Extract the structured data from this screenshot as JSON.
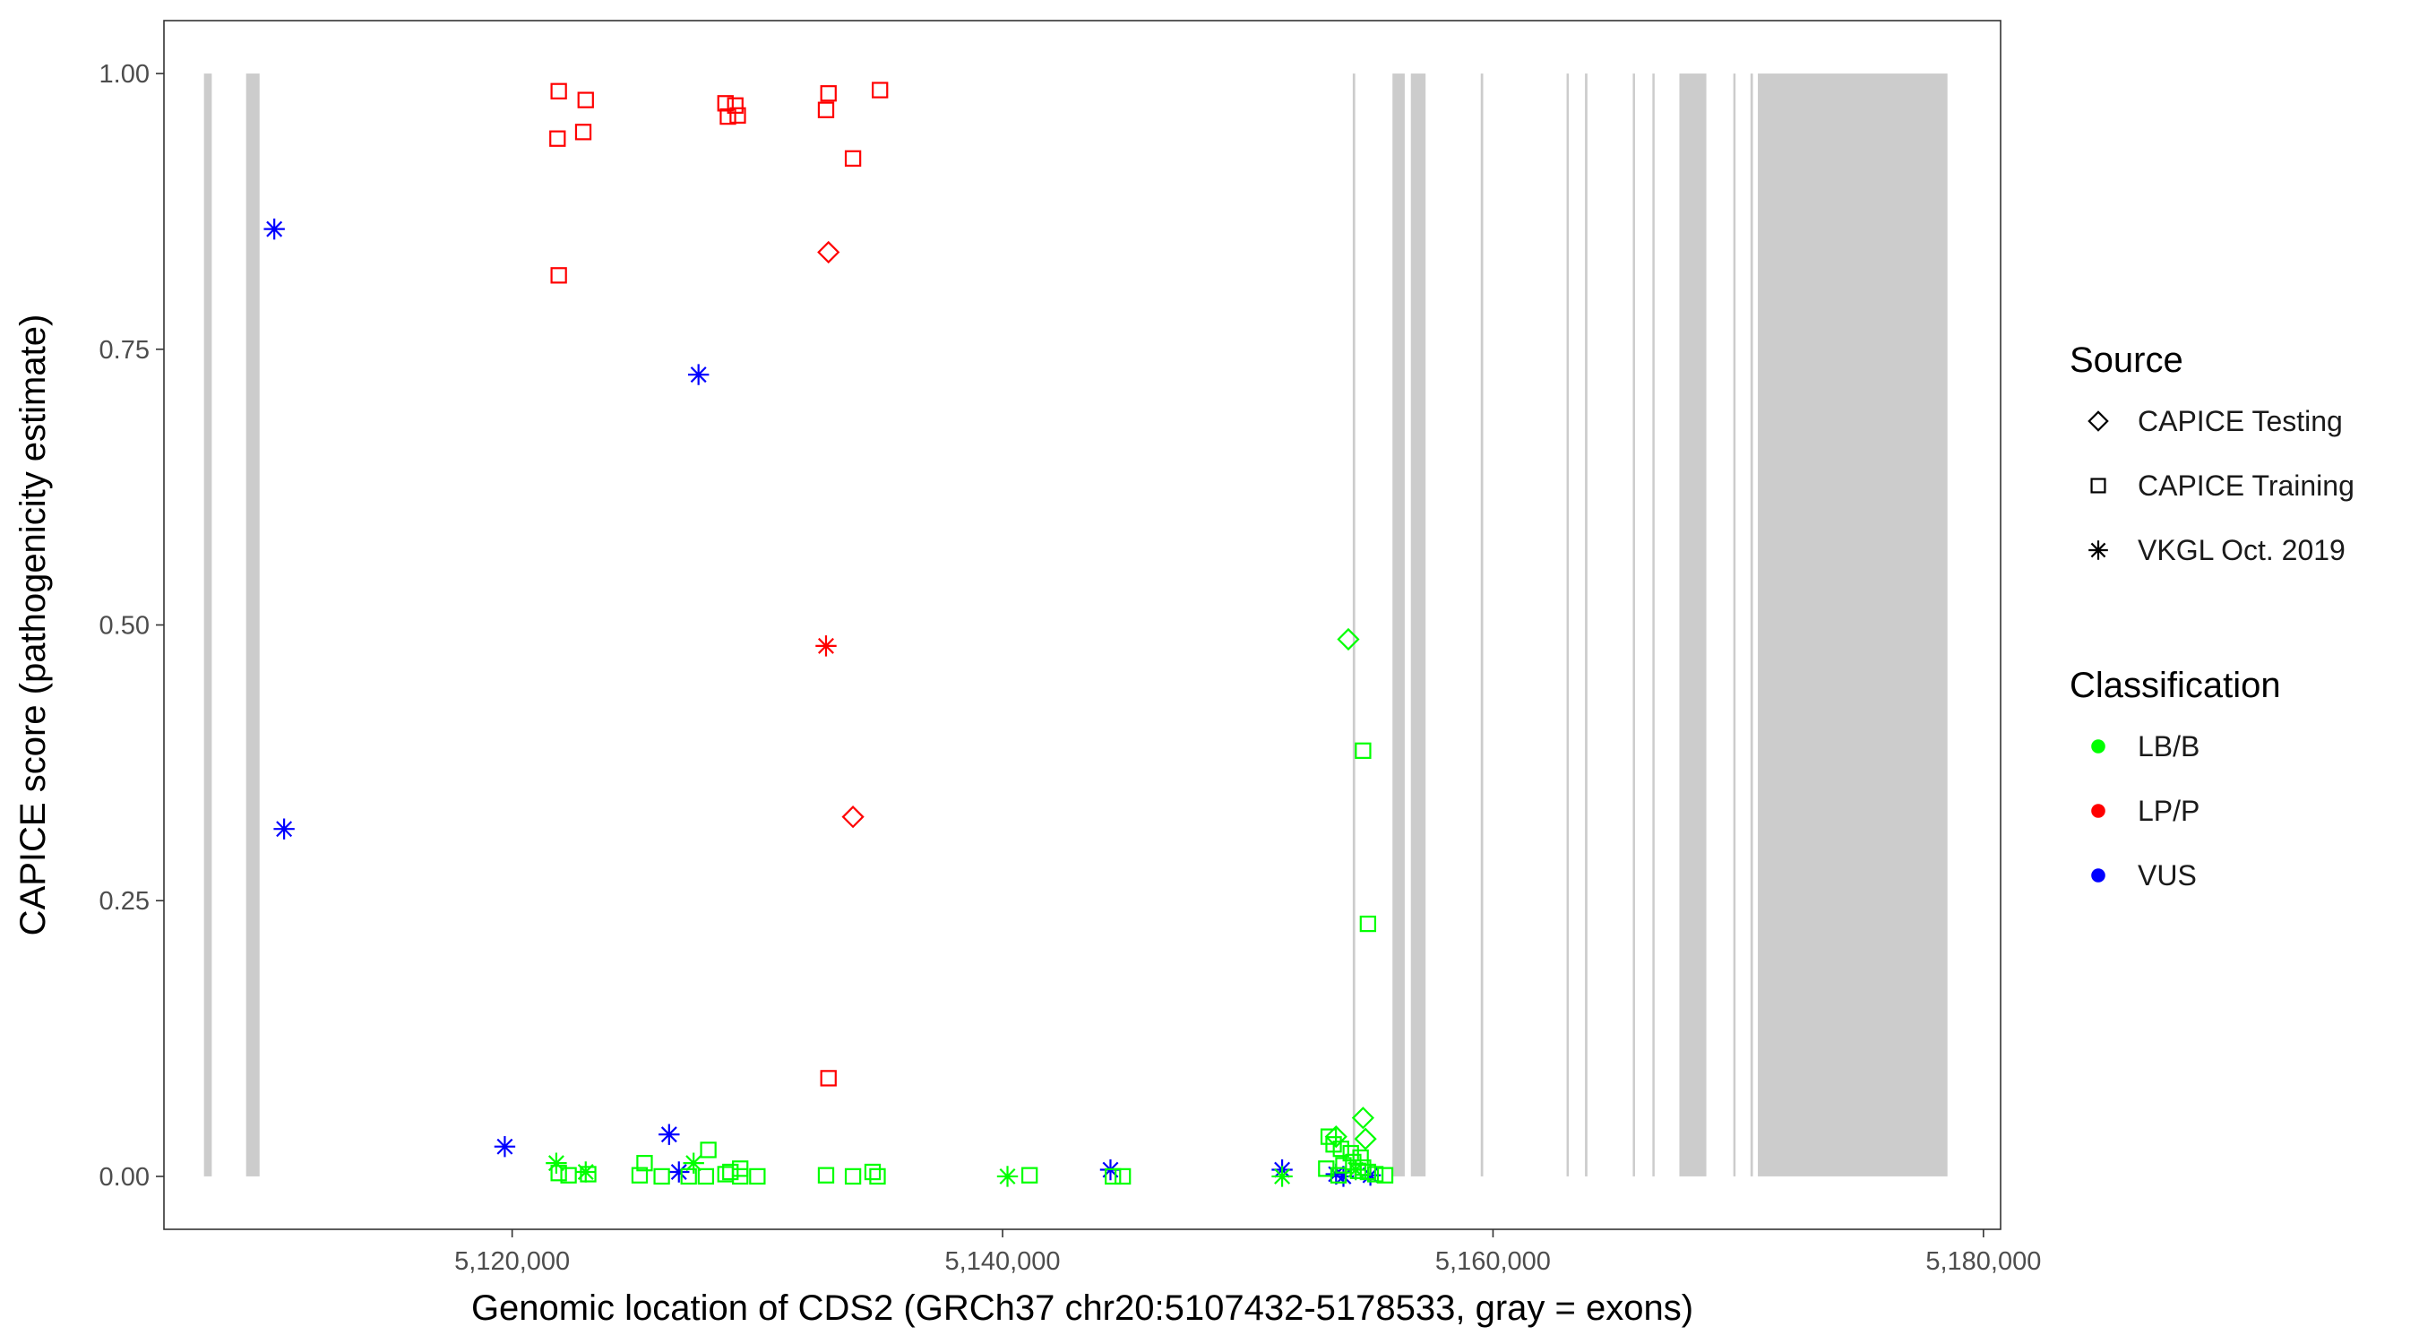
{
  "chart_data": {
    "type": "scatter",
    "title": "",
    "xlabel": "Genomic location of CDS2 (GRCh37 chr20:5107432-5178533, gray = exons)",
    "ylabel": "CAPICE score (pathogenicity estimate)",
    "xlim": [
      5105800,
      5180700
    ],
    "ylim": [
      -0.048,
      1.048
    ],
    "x_ticks": [
      5120000,
      5140000,
      5160000,
      5180000
    ],
    "x_tick_labels": [
      "5,120,000",
      "5,140,000",
      "5,160,000",
      "5,180,000"
    ],
    "y_ticks": [
      0,
      0.25,
      0.5,
      0.75,
      1.0
    ],
    "y_tick_labels": [
      "0.00",
      "0.25",
      "0.50",
      "0.75",
      "1.00"
    ],
    "grid": false,
    "exon_color": "#cccccc",
    "exons": [
      [
        5107432,
        5107750
      ],
      [
        5109150,
        5109700
      ],
      [
        5154280,
        5154380
      ],
      [
        5155900,
        5156400
      ],
      [
        5156650,
        5157250
      ],
      [
        5159500,
        5159600
      ],
      [
        5163000,
        5163080
      ],
      [
        5163750,
        5163850
      ],
      [
        5165700,
        5165780
      ],
      [
        5166500,
        5166580
      ],
      [
        5167600,
        5168700
      ],
      [
        5169800,
        5169880
      ],
      [
        5170500,
        5170600
      ],
      [
        5170800,
        5178533
      ]
    ],
    "legend_position": "right",
    "legend": {
      "source_title": "Source",
      "source_items": [
        {
          "label": "CAPICE Testing",
          "shape": "diamond"
        },
        {
          "label": "CAPICE Training",
          "shape": "square"
        },
        {
          "label": "VKGL Oct. 2019",
          "shape": "asterisk"
        }
      ],
      "class_title": "Classification",
      "class_items": [
        {
          "label": "LB/B",
          "color": "#00ff00"
        },
        {
          "label": "LP/P",
          "color": "#ff0000"
        },
        {
          "label": "VUS",
          "color": "#0000ff"
        }
      ]
    },
    "series": [
      {
        "name": "LP/P",
        "color": "#ff0000",
        "points": [
          {
            "x": 5121900,
            "y": 0.984,
            "shape": "square"
          },
          {
            "x": 5121850,
            "y": 0.941,
            "shape": "square"
          },
          {
            "x": 5123000,
            "y": 0.976,
            "shape": "square"
          },
          {
            "x": 5122900,
            "y": 0.947,
            "shape": "square"
          },
          {
            "x": 5128700,
            "y": 0.973,
            "shape": "square"
          },
          {
            "x": 5129100,
            "y": 0.971,
            "shape": "square"
          },
          {
            "x": 5128800,
            "y": 0.961,
            "shape": "square"
          },
          {
            "x": 5129200,
            "y": 0.962,
            "shape": "square"
          },
          {
            "x": 5132900,
            "y": 0.982,
            "shape": "square"
          },
          {
            "x": 5132800,
            "y": 0.967,
            "shape": "square"
          },
          {
            "x": 5135000,
            "y": 0.985,
            "shape": "square"
          },
          {
            "x": 5133900,
            "y": 0.923,
            "shape": "square"
          },
          {
            "x": 5121900,
            "y": 0.817,
            "shape": "square"
          },
          {
            "x": 5132900,
            "y": 0.089,
            "shape": "square"
          },
          {
            "x": 5132900,
            "y": 0.838,
            "shape": "diamond"
          },
          {
            "x": 5133900,
            "y": 0.326,
            "shape": "diamond"
          },
          {
            "x": 5132800,
            "y": 0.481,
            "shape": "asterisk"
          }
        ]
      },
      {
        "name": "VUS",
        "color": "#0000ff",
        "points": [
          {
            "x": 5110300,
            "y": 0.859,
            "shape": "asterisk"
          },
          {
            "x": 5110700,
            "y": 0.315,
            "shape": "asterisk"
          },
          {
            "x": 5127600,
            "y": 0.727,
            "shape": "asterisk"
          },
          {
            "x": 5119700,
            "y": 0.027,
            "shape": "asterisk"
          },
          {
            "x": 5126400,
            "y": 0.038,
            "shape": "asterisk"
          },
          {
            "x": 5126800,
            "y": 0.004,
            "shape": "asterisk"
          },
          {
            "x": 5144400,
            "y": 0.006,
            "shape": "asterisk"
          },
          {
            "x": 5151400,
            "y": 0.006,
            "shape": "asterisk"
          },
          {
            "x": 5153600,
            "y": 0.002,
            "shape": "asterisk"
          },
          {
            "x": 5153900,
            "y": 0.0,
            "shape": "asterisk"
          },
          {
            "x": 5155000,
            "y": 0.001,
            "shape": "asterisk"
          }
        ]
      },
      {
        "name": "LB/B",
        "color": "#00ff00",
        "points": [
          {
            "x": 5154100,
            "y": 0.487,
            "shape": "diamond"
          },
          {
            "x": 5154700,
            "y": 0.053,
            "shape": "diamond"
          },
          {
            "x": 5153600,
            "y": 0.036,
            "shape": "diamond"
          },
          {
            "x": 5154800,
            "y": 0.034,
            "shape": "diamond"
          },
          {
            "x": 5154700,
            "y": 0.386,
            "shape": "square"
          },
          {
            "x": 5154900,
            "y": 0.229,
            "shape": "square"
          },
          {
            "x": 5153300,
            "y": 0.036,
            "shape": "square"
          },
          {
            "x": 5153500,
            "y": 0.029,
            "shape": "square"
          },
          {
            "x": 5153800,
            "y": 0.025,
            "shape": "square"
          },
          {
            "x": 5154200,
            "y": 0.021,
            "shape": "square"
          },
          {
            "x": 5154600,
            "y": 0.017,
            "shape": "square"
          },
          {
            "x": 5154300,
            "y": 0.013,
            "shape": "square"
          },
          {
            "x": 5153900,
            "y": 0.01,
            "shape": "square"
          },
          {
            "x": 5154700,
            "y": 0.008,
            "shape": "square"
          },
          {
            "x": 5153200,
            "y": 0.007,
            "shape": "square"
          },
          {
            "x": 5154500,
            "y": 0.005,
            "shape": "square"
          },
          {
            "x": 5154900,
            "y": 0.004,
            "shape": "square"
          },
          {
            "x": 5155200,
            "y": 0.002,
            "shape": "square"
          },
          {
            "x": 5155600,
            "y": 0.001,
            "shape": "square"
          },
          {
            "x": 5153700,
            "y": 0.001,
            "shape": "square"
          },
          {
            "x": 5128000,
            "y": 0.024,
            "shape": "square"
          },
          {
            "x": 5125400,
            "y": 0.012,
            "shape": "square"
          },
          {
            "x": 5129300,
            "y": 0.007,
            "shape": "square"
          },
          {
            "x": 5128900,
            "y": 0.004,
            "shape": "square"
          },
          {
            "x": 5121900,
            "y": 0.003,
            "shape": "square"
          },
          {
            "x": 5122300,
            "y": 0.001,
            "shape": "square"
          },
          {
            "x": 5123100,
            "y": 0.002,
            "shape": "square"
          },
          {
            "x": 5125200,
            "y": 0.001,
            "shape": "square"
          },
          {
            "x": 5126100,
            "y": 0.0,
            "shape": "square"
          },
          {
            "x": 5127200,
            "y": 0.0,
            "shape": "square"
          },
          {
            "x": 5127900,
            "y": 0.0,
            "shape": "square"
          },
          {
            "x": 5128700,
            "y": 0.002,
            "shape": "square"
          },
          {
            "x": 5129300,
            "y": 0.0,
            "shape": "square"
          },
          {
            "x": 5130000,
            "y": 0.0,
            "shape": "square"
          },
          {
            "x": 5132800,
            "y": 0.001,
            "shape": "square"
          },
          {
            "x": 5133900,
            "y": 0.0,
            "shape": "square"
          },
          {
            "x": 5134700,
            "y": 0.004,
            "shape": "square"
          },
          {
            "x": 5134900,
            "y": 0.0,
            "shape": "square"
          },
          {
            "x": 5141100,
            "y": 0.001,
            "shape": "square"
          },
          {
            "x": 5144500,
            "y": 0.0,
            "shape": "square"
          },
          {
            "x": 5144900,
            "y": 0.0,
            "shape": "square"
          },
          {
            "x": 5121800,
            "y": 0.012,
            "shape": "asterisk"
          },
          {
            "x": 5123000,
            "y": 0.004,
            "shape": "asterisk"
          },
          {
            "x": 5127400,
            "y": 0.012,
            "shape": "asterisk"
          },
          {
            "x": 5140200,
            "y": 0.0,
            "shape": "asterisk"
          },
          {
            "x": 5151400,
            "y": 0.0,
            "shape": "asterisk"
          },
          {
            "x": 5154400,
            "y": 0.006,
            "shape": "asterisk"
          }
        ]
      }
    ]
  }
}
